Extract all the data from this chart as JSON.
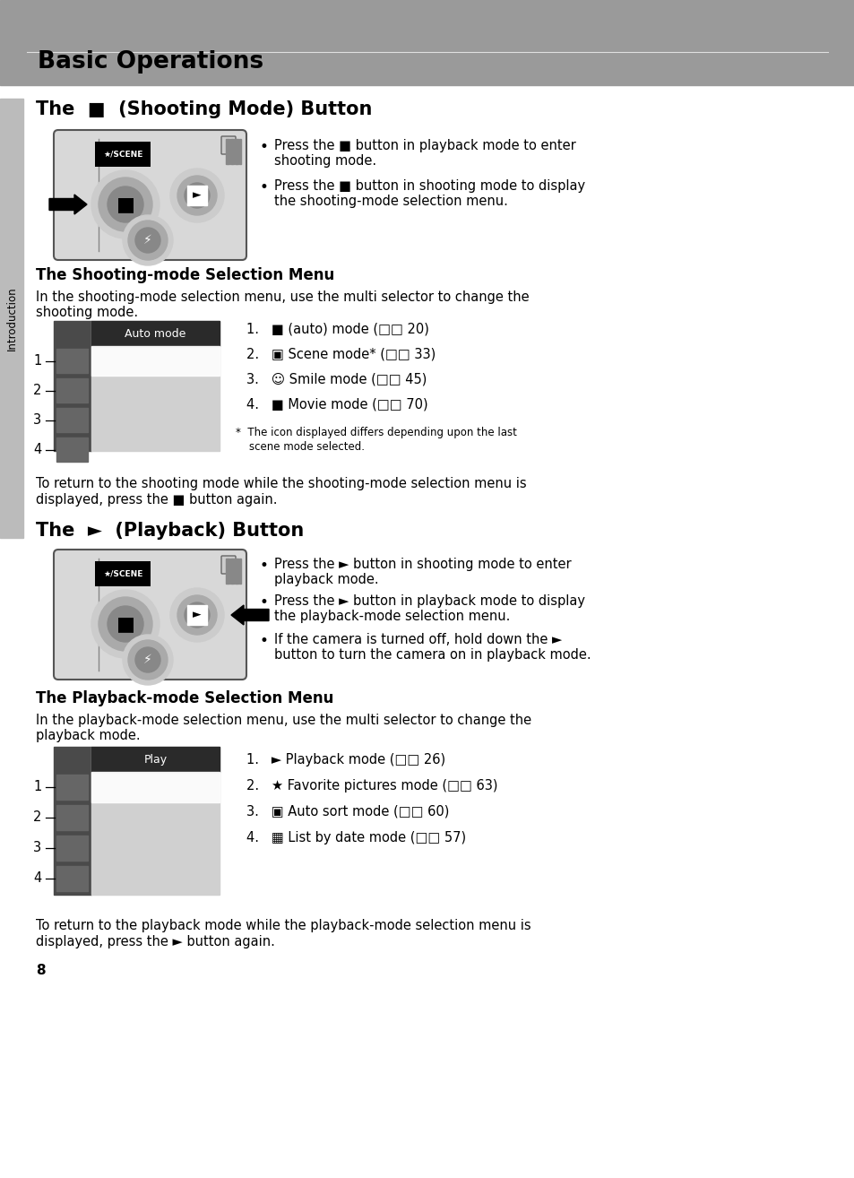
{
  "bg_color": "#ffffff",
  "header_bg": "#999999",
  "page_width": 9.54,
  "page_height": 13.14,
  "dpi": 100,
  "main_title": "Basic Operations",
  "sec1_title": "The  ■  (Shooting Mode) Button",
  "sec2_title": "The  ►  (Playback) Button",
  "sub1_title": "The Shooting-mode Selection Menu",
  "sub2_title": "The Playback-mode Selection Menu",
  "sidebar_text": "Introduction",
  "page_num": "8",
  "shoot_bullet1_line1": "Press the ■ button in playback mode to enter",
  "shoot_bullet1_line2": "shooting mode.",
  "shoot_bullet2_line1": "Press the ■ button in shooting mode to display",
  "shoot_bullet2_line2": "the shooting-mode selection menu.",
  "sub1_intro_line1": "In the shooting-mode selection menu, use the multi selector to change the",
  "sub1_intro_line2": "shooting mode.",
  "shoot_items": [
    "1.   ■ (auto) mode (□□ 20)",
    "2.   ▣ Scene mode* (□□ 33)",
    "3.   ☺ Smile mode (□□ 45)",
    "4.   ■ Movie mode (□□ 70)"
  ],
  "shoot_footnote_line1": "*  The icon displayed differs depending upon the last",
  "shoot_footnote_line2": "    scene mode selected.",
  "return_shoot_line1": "To return to the shooting mode while the shooting-mode selection menu is",
  "return_shoot_line2": "displayed, press the ■ button again.",
  "play_bullet1_line1": "Press the ► button in shooting mode to enter",
  "play_bullet1_line2": "playback mode.",
  "play_bullet2_line1": "Press the ► button in playback mode to display",
  "play_bullet2_line2": "the playback-mode selection menu.",
  "play_bullet3_line1": "If the camera is turned off, hold down the ►",
  "play_bullet3_line2": "button to turn the camera on in playback mode.",
  "sub2_intro_line1": "In the playback-mode selection menu, use the multi selector to change the",
  "sub2_intro_line2": "playback mode.",
  "play_items": [
    "1.   ► Playback mode (□□ 26)",
    "2.   ★ Favorite pictures mode (□□ 63)",
    "3.   ▣ Auto sort mode (□□ 60)",
    "4.   ▦ List by date mode (□□ 57)"
  ],
  "return_play_line1": "To return to the playback mode while the playback-mode selection menu is",
  "return_play_line2": "displayed, press the ► button again.",
  "shoot_menu_label": "Auto mode",
  "play_menu_label": "Play"
}
